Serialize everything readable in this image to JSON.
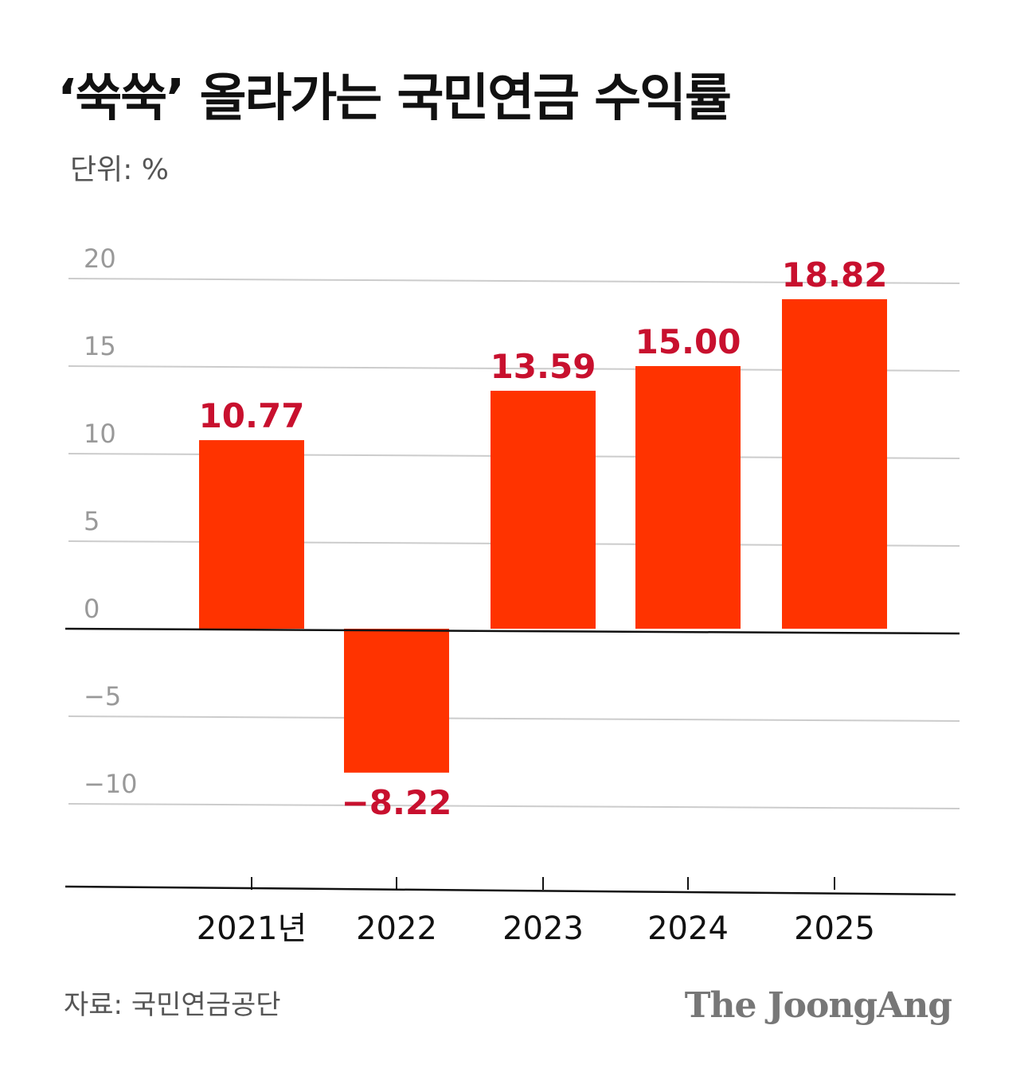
{
  "header": {
    "title": "‘쑥쑥’ 올라가는 국민연금 수익률",
    "unit": "단위: %"
  },
  "footer": {
    "source": "자료: 국민연금공단",
    "brand": "The JoongAng"
  },
  "colors": {
    "bar": "#ff3300",
    "value_label": "#c8102e",
    "grid": "#cccccc",
    "axis": "#111111",
    "tick_label": "#999999"
  },
  "chart_data": {
    "type": "bar",
    "categories": [
      "2021년",
      "2022",
      "2023",
      "2024",
      "2025"
    ],
    "values": [
      10.77,
      -8.22,
      13.59,
      15.0,
      18.82
    ],
    "value_labels": [
      "10.77",
      "−8.22",
      "13.59",
      "15.00",
      "18.82"
    ],
    "yticks": [
      20,
      15,
      10,
      5,
      0,
      -5,
      -10
    ],
    "ytick_labels": [
      "20",
      "15",
      "10",
      "5",
      "0",
      "−5",
      "−10"
    ],
    "ylim": [
      -15,
      20
    ],
    "title": "‘쑥쑥’ 올라가는 국민연금 수익률",
    "ylabel": "단위: %",
    "grid": true,
    "legend": "none"
  }
}
